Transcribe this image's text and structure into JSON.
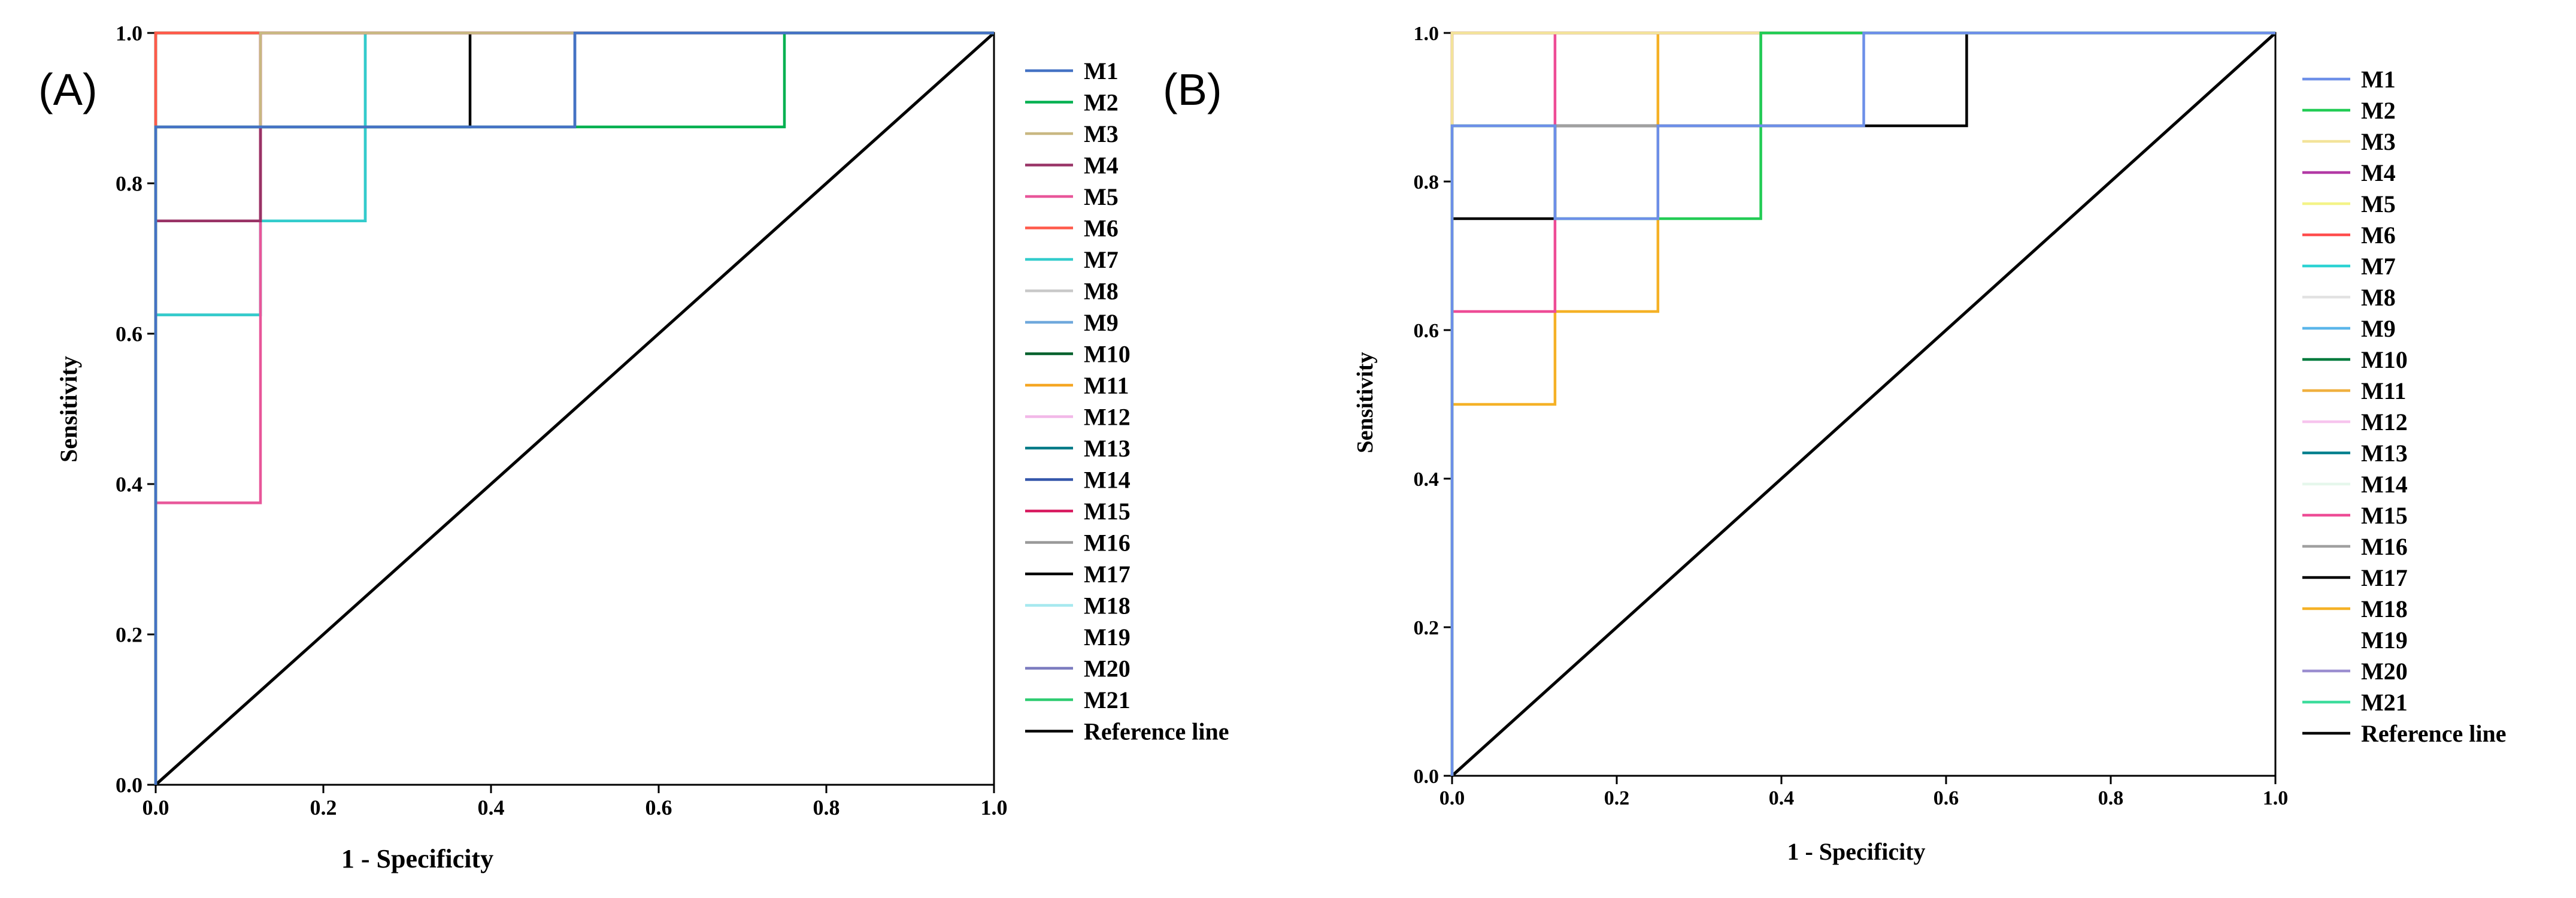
{
  "figure": {
    "panels": [
      {
        "label": "(A)",
        "xlabel": "1 - Specificity",
        "ylabel": "Sensitivity",
        "x_ticks": [
          "0.0",
          "0.2",
          "0.4",
          "0.6",
          "0.8",
          "1.0"
        ],
        "y_ticks": [
          "0.0",
          "0.2",
          "0.4",
          "0.6",
          "0.8",
          "1.0"
        ]
      },
      {
        "label": "(B)",
        "xlabel": "1 - Specificity",
        "ylabel": "Sensitivity",
        "x_ticks": [
          "0.0",
          "0.2",
          "0.4",
          "0.6",
          "0.8",
          "1.0"
        ],
        "y_ticks": [
          "0.0",
          "0.2",
          "0.4",
          "0.6",
          "0.8",
          "1.0"
        ]
      }
    ]
  },
  "chart_data": [
    {
      "type": "line",
      "title": "",
      "panel_label": "(A)",
      "xlabel": "1 - Specificity",
      "ylabel": "Sensitivity",
      "xlim": [
        0,
        1
      ],
      "ylim": [
        0,
        1
      ],
      "x_ticks": [
        0,
        0.2,
        0.4,
        0.6,
        0.8,
        1.0
      ],
      "y_ticks": [
        0,
        0.2,
        0.4,
        0.6,
        0.8,
        1.0
      ],
      "grid": false,
      "legend_position": "right",
      "series": [
        {
          "name": "M1",
          "color": "#4472c4",
          "points": [
            [
              0,
              0
            ],
            [
              0,
              0.875
            ],
            [
              0.5,
              0.875
            ],
            [
              0.5,
              1
            ],
            [
              1,
              1
            ]
          ]
        },
        {
          "name": "M2",
          "color": "#00b050",
          "points": [
            [
              0,
              0
            ],
            [
              0,
              0.875
            ],
            [
              0.75,
              0.875
            ],
            [
              0.75,
              1
            ],
            [
              1,
              1
            ]
          ]
        },
        {
          "name": "M3",
          "color": "#c9b882",
          "points": [
            [
              0,
              0
            ],
            [
              0,
              0.875
            ],
            [
              0.125,
              0.875
            ],
            [
              0.125,
              1
            ],
            [
              1,
              1
            ]
          ]
        },
        {
          "name": "M4",
          "color": "#993366",
          "points": [
            [
              0,
              0
            ],
            [
              0,
              0.75
            ],
            [
              0.125,
              0.75
            ],
            [
              0.125,
              1
            ],
            [
              1,
              1
            ]
          ]
        },
        {
          "name": "M5",
          "color": "#e8579a",
          "points": [
            [
              0,
              0
            ],
            [
              0,
              0.375
            ],
            [
              0.125,
              0.375
            ],
            [
              0.125,
              1
            ],
            [
              1,
              1
            ]
          ]
        },
        {
          "name": "M6",
          "color": "#ff5a4a",
          "points": [
            [
              0,
              0
            ],
            [
              0,
              1
            ],
            [
              1,
              1
            ]
          ]
        },
        {
          "name": "M7",
          "color": "#33cccc",
          "points": [
            [
              0,
              0
            ],
            [
              0,
              0.625
            ],
            [
              0.125,
              0.625
            ],
            [
              0.125,
              0.75
            ],
            [
              0.25,
              0.75
            ],
            [
              0.25,
              1
            ],
            [
              1,
              1
            ]
          ]
        },
        {
          "name": "M8",
          "color": "#c8c8c8",
          "points": [
            [
              0,
              0
            ],
            [
              0,
              0.625
            ],
            [
              0.125,
              0.625
            ],
            [
              0.125,
              0.75
            ],
            [
              0.25,
              0.75
            ],
            [
              0.25,
              1
            ],
            [
              1,
              1
            ]
          ]
        },
        {
          "name": "M9",
          "color": "#6fa8dc",
          "points": [
            [
              0,
              0
            ],
            [
              0,
              0.625
            ],
            [
              0.125,
              0.625
            ],
            [
              0.125,
              0.75
            ],
            [
              0.25,
              0.75
            ],
            [
              0.25,
              1
            ],
            [
              1,
              1
            ]
          ]
        },
        {
          "name": "M10",
          "color": "#00602b",
          "points": [
            [
              0,
              0
            ],
            [
              0,
              1
            ],
            [
              1,
              1
            ]
          ]
        },
        {
          "name": "M11",
          "color": "#f5a623",
          "points": [
            [
              0,
              0
            ],
            [
              0,
              1
            ],
            [
              1,
              1
            ]
          ]
        },
        {
          "name": "M12",
          "color": "#f2b8e8",
          "points": [
            [
              0,
              0
            ],
            [
              0,
              1
            ],
            [
              1,
              1
            ]
          ]
        },
        {
          "name": "M13",
          "color": "#007a87",
          "points": [
            [
              0,
              0
            ],
            [
              0,
              1
            ],
            [
              1,
              1
            ]
          ]
        },
        {
          "name": "M14",
          "color": "#3355aa",
          "points": [
            [
              0,
              0
            ],
            [
              0,
              0.875
            ],
            [
              0.5,
              0.875
            ],
            [
              0.5,
              1
            ],
            [
              1,
              1
            ]
          ]
        },
        {
          "name": "M15",
          "color": "#d81b60",
          "points": [
            [
              0,
              0
            ],
            [
              0,
              0.75
            ],
            [
              0.125,
              0.75
            ],
            [
              0.125,
              1
            ],
            [
              1,
              1
            ]
          ]
        },
        {
          "name": "M16",
          "color": "#999999",
          "points": [
            [
              0,
              0
            ],
            [
              0,
              0.875
            ],
            [
              0.125,
              0.875
            ],
            [
              0.125,
              1
            ],
            [
              1,
              1
            ]
          ]
        },
        {
          "name": "M17",
          "color": "#000000",
          "points": [
            [
              0,
              0
            ],
            [
              0,
              0.75
            ],
            [
              0.125,
              0.75
            ],
            [
              0.125,
              0.875
            ],
            [
              0.375,
              0.875
            ],
            [
              0.375,
              1
            ],
            [
              1,
              1
            ]
          ]
        },
        {
          "name": "M18",
          "color": "#a6e9ef",
          "points": [
            [
              0,
              0
            ],
            [
              0,
              0.625
            ],
            [
              0.125,
              0.625
            ],
            [
              0.125,
              0.75
            ],
            [
              0.25,
              0.75
            ],
            [
              0.25,
              1
            ],
            [
              1,
              1
            ]
          ]
        },
        {
          "name": "M19",
          "color": "#ffffff",
          "points": [
            [
              0,
              0
            ],
            [
              0,
              1
            ],
            [
              1,
              1
            ]
          ]
        },
        {
          "name": "M20",
          "color": "#7b7bbf",
          "points": [
            [
              0,
              0
            ],
            [
              0,
              1
            ],
            [
              1,
              1
            ]
          ]
        },
        {
          "name": "M21",
          "color": "#2ecc71",
          "points": [
            [
              0,
              0
            ],
            [
              0,
              1
            ],
            [
              1,
              1
            ]
          ]
        },
        {
          "name": "Reference line",
          "color": "#000000",
          "points": [
            [
              0,
              0
            ],
            [
              1,
              1
            ]
          ]
        }
      ]
    },
    {
      "type": "line",
      "title": "",
      "panel_label": "(B)",
      "xlabel": "1 - Specificity",
      "ylabel": "Sensitivity",
      "xlim": [
        0,
        1
      ],
      "ylim": [
        0,
        1
      ],
      "x_ticks": [
        0,
        0.2,
        0.4,
        0.6,
        0.8,
        1.0
      ],
      "y_ticks": [
        0,
        0.2,
        0.4,
        0.6,
        0.8,
        1.0
      ],
      "grid": false,
      "legend_position": "right",
      "series": [
        {
          "name": "M1",
          "color": "#6d8fe8",
          "points": [
            [
              0,
              0
            ],
            [
              0,
              0.875
            ],
            [
              0.125,
              0.875
            ],
            [
              0.125,
              0.75
            ],
            [
              0.25,
              0.75
            ],
            [
              0.25,
              0.875
            ],
            [
              0.5,
              0.875
            ],
            [
              0.5,
              1
            ],
            [
              1,
              1
            ]
          ]
        },
        {
          "name": "M2",
          "color": "#22cc55",
          "points": [
            [
              0,
              0
            ],
            [
              0,
              0.875
            ],
            [
              0.125,
              0.875
            ],
            [
              0.125,
              0.75
            ],
            [
              0.375,
              0.75
            ],
            [
              0.375,
              1
            ],
            [
              1,
              1
            ]
          ]
        },
        {
          "name": "M3",
          "color": "#f3e39a",
          "points": [
            [
              0,
              0
            ],
            [
              0,
              1
            ],
            [
              1,
              1
            ]
          ]
        },
        {
          "name": "M4",
          "color": "#b23aa5",
          "points": [
            [
              0,
              0
            ],
            [
              0,
              1
            ],
            [
              1,
              1
            ]
          ]
        },
        {
          "name": "M5",
          "color": "#f4f488",
          "points": [
            [
              0,
              0
            ],
            [
              0,
              1
            ],
            [
              1,
              1
            ]
          ]
        },
        {
          "name": "M6",
          "color": "#ff4d4d",
          "points": [
            [
              0,
              0
            ],
            [
              0,
              1
            ],
            [
              1,
              1
            ]
          ]
        },
        {
          "name": "M7",
          "color": "#2dd3d3",
          "points": [
            [
              0,
              0
            ],
            [
              0,
              1
            ],
            [
              1,
              1
            ]
          ]
        },
        {
          "name": "M8",
          "color": "#e2e2e2",
          "points": [
            [
              0,
              0
            ],
            [
              0,
              1
            ],
            [
              1,
              1
            ]
          ]
        },
        {
          "name": "M9",
          "color": "#5bb6ea",
          "points": [
            [
              0,
              0
            ],
            [
              0,
              1
            ],
            [
              1,
              1
            ]
          ]
        },
        {
          "name": "M10",
          "color": "#007a3d",
          "points": [
            [
              0,
              0
            ],
            [
              0,
              1
            ],
            [
              1,
              1
            ]
          ]
        },
        {
          "name": "M11",
          "color": "#f0b040",
          "points": [
            [
              0,
              0
            ],
            [
              0,
              1
            ],
            [
              1,
              1
            ]
          ]
        },
        {
          "name": "M12",
          "color": "#f7c4ee",
          "points": [
            [
              0,
              0
            ],
            [
              0,
              1
            ],
            [
              1,
              1
            ]
          ]
        },
        {
          "name": "M13",
          "color": "#00808e",
          "points": [
            [
              0,
              0
            ],
            [
              0,
              1
            ],
            [
              1,
              1
            ]
          ]
        },
        {
          "name": "M14",
          "color": "#e6f7ec",
          "points": [
            [
              0,
              0
            ],
            [
              0,
              1
            ],
            [
              1,
              1
            ]
          ]
        },
        {
          "name": "M15",
          "color": "#ee4c96",
          "points": [
            [
              0,
              0
            ],
            [
              0,
              0.625
            ],
            [
              0.125,
              0.625
            ],
            [
              0.125,
              1
            ],
            [
              1,
              1
            ]
          ]
        },
        {
          "name": "M16",
          "color": "#a0a0a0",
          "points": [
            [
              0,
              0
            ],
            [
              0,
              0.875
            ],
            [
              0.375,
              0.875
            ],
            [
              0.375,
              1
            ],
            [
              1,
              1
            ]
          ]
        },
        {
          "name": "M17",
          "color": "#000000",
          "points": [
            [
              0,
              0
            ],
            [
              0,
              0.75
            ],
            [
              0.125,
              0.75
            ],
            [
              0.125,
              0.875
            ],
            [
              0.625,
              0.875
            ],
            [
              0.625,
              1
            ],
            [
              1,
              1
            ]
          ]
        },
        {
          "name": "M18",
          "color": "#f5b126",
          "points": [
            [
              0,
              0
            ],
            [
              0,
              0.5
            ],
            [
              0.125,
              0.5
            ],
            [
              0.125,
              0.625
            ],
            [
              0.25,
              0.625
            ],
            [
              0.25,
              1
            ],
            [
              1,
              1
            ]
          ]
        },
        {
          "name": "M19",
          "color": "#ffffff",
          "points": [
            [
              0,
              0
            ],
            [
              0,
              1
            ],
            [
              1,
              1
            ]
          ]
        },
        {
          "name": "M20",
          "color": "#9b8ed0",
          "points": [
            [
              0,
              0
            ],
            [
              0,
              0.875
            ],
            [
              0.375,
              0.875
            ],
            [
              0.375,
              1
            ],
            [
              1,
              1
            ]
          ]
        },
        {
          "name": "M21",
          "color": "#3ddc9c",
          "points": [
            [
              0,
              0
            ],
            [
              0,
              1
            ],
            [
              1,
              1
            ]
          ]
        },
        {
          "name": "Reference line",
          "color": "#000000",
          "points": [
            [
              0,
              0
            ],
            [
              1,
              1
            ]
          ]
        }
      ]
    }
  ]
}
